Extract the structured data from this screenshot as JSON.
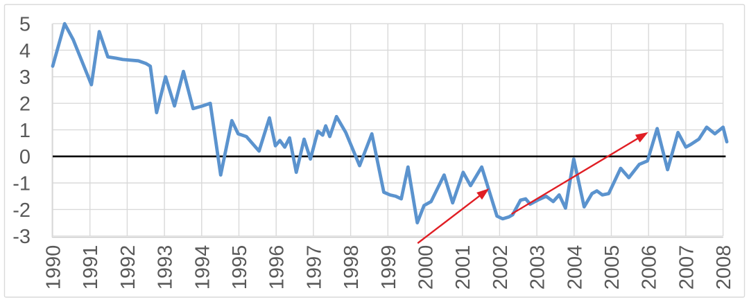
{
  "figure": {
    "background": "#ffffff",
    "border_color": "#d9d9d9"
  },
  "chart_data": {
    "type": "line",
    "title": "",
    "grid": true,
    "legend": false,
    "gridline_color": "#d9d9d9",
    "axis_line_color": "#c9c9c9",
    "tick_label_color": "#595959",
    "x_axis": {
      "tick_labels": [
        "1990",
        "1991",
        "1992",
        "1993",
        "1994",
        "1995",
        "1996",
        "1997",
        "1998",
        "1999",
        "2000",
        "2001",
        "2002",
        "2003",
        "2004",
        "2005",
        "2006",
        "2007",
        "2008"
      ],
      "range": [
        1990,
        2008.6
      ],
      "label_rotation_deg": -90
    },
    "y_axis": {
      "tick_labels": [
        "5",
        "4",
        "3",
        "2",
        "1",
        "0",
        "-1",
        "-2",
        "-3"
      ],
      "tick_values": [
        5,
        4,
        3,
        2,
        1,
        0,
        -1,
        -2,
        -3
      ],
      "range": [
        -3,
        5
      ]
    },
    "series": [
      {
        "name": "value-line",
        "color": "#5b93ce",
        "points": [
          [
            1990.0,
            3.4
          ],
          [
            1990.32,
            5.0
          ],
          [
            1990.55,
            4.4
          ],
          [
            1991.04,
            2.7
          ],
          [
            1991.25,
            4.7
          ],
          [
            1991.48,
            3.75
          ],
          [
            1991.7,
            3.7
          ],
          [
            1991.88,
            3.65
          ],
          [
            1992.3,
            3.6
          ],
          [
            1992.5,
            3.5
          ],
          [
            1992.62,
            3.4
          ],
          [
            1992.79,
            1.65
          ],
          [
            1993.03,
            3.0
          ],
          [
            1993.27,
            1.9
          ],
          [
            1993.51,
            3.2
          ],
          [
            1993.77,
            1.8
          ],
          [
            1994.02,
            1.9
          ],
          [
            1994.23,
            2.0
          ],
          [
            1994.51,
            -0.7
          ],
          [
            1994.81,
            1.35
          ],
          [
            1994.98,
            0.85
          ],
          [
            1995.2,
            0.75
          ],
          [
            1995.54,
            0.2
          ],
          [
            1995.82,
            1.45
          ],
          [
            1995.98,
            0.4
          ],
          [
            1996.1,
            0.6
          ],
          [
            1996.23,
            0.35
          ],
          [
            1996.36,
            0.7
          ],
          [
            1996.54,
            -0.6
          ],
          [
            1996.75,
            0.65
          ],
          [
            1996.92,
            -0.1
          ],
          [
            1997.12,
            0.95
          ],
          [
            1997.25,
            0.8
          ],
          [
            1997.33,
            1.15
          ],
          [
            1997.44,
            0.75
          ],
          [
            1997.62,
            1.5
          ],
          [
            1997.87,
            0.9
          ],
          [
            1998.24,
            -0.35
          ],
          [
            1998.57,
            0.85
          ],
          [
            1998.89,
            -1.35
          ],
          [
            1999.06,
            -1.45
          ],
          [
            1999.21,
            -1.5
          ],
          [
            1999.36,
            -1.6
          ],
          [
            1999.54,
            -0.4
          ],
          [
            1999.79,
            -2.5
          ],
          [
            1999.97,
            -1.85
          ],
          [
            2000.16,
            -1.7
          ],
          [
            2000.51,
            -0.7
          ],
          [
            2000.74,
            -1.75
          ],
          [
            2001.02,
            -0.6
          ],
          [
            2001.22,
            -1.1
          ],
          [
            2001.52,
            -0.4
          ],
          [
            2001.93,
            -2.25
          ],
          [
            2002.08,
            -2.35
          ],
          [
            2002.25,
            -2.28
          ],
          [
            2002.35,
            -2.2
          ],
          [
            2002.56,
            -1.65
          ],
          [
            2002.7,
            -1.6
          ],
          [
            2002.82,
            -1.8
          ],
          [
            2003.02,
            -1.65
          ],
          [
            2003.25,
            -1.5
          ],
          [
            2003.44,
            -1.7
          ],
          [
            2003.6,
            -1.45
          ],
          [
            2003.77,
            -1.95
          ],
          [
            2003.99,
            -0.1
          ],
          [
            2004.27,
            -1.9
          ],
          [
            2004.48,
            -1.4
          ],
          [
            2004.61,
            -1.3
          ],
          [
            2004.76,
            -1.45
          ],
          [
            2004.93,
            -1.4
          ],
          [
            2005.25,
            -0.45
          ],
          [
            2005.47,
            -0.8
          ],
          [
            2005.75,
            -0.3
          ],
          [
            2005.97,
            -0.17
          ],
          [
            2006.23,
            1.05
          ],
          [
            2006.51,
            -0.5
          ],
          [
            2006.79,
            0.9
          ],
          [
            2007.0,
            0.35
          ],
          [
            2007.13,
            0.45
          ],
          [
            2007.35,
            0.65
          ],
          [
            2007.56,
            1.1
          ],
          [
            2007.78,
            0.85
          ],
          [
            2008.0,
            1.1
          ],
          [
            2008.1,
            0.55
          ]
        ]
      }
    ],
    "zero_line": {
      "value": 0,
      "color": "#000000",
      "x_start": 1990,
      "x_end": 2008.07
    },
    "annotations": [
      {
        "type": "arrow",
        "name": "trend-arrow-1",
        "color": "#e01e24",
        "from": [
          1999.8,
          -3.27
        ],
        "to": [
          2001.72,
          -1.21
        ]
      },
      {
        "type": "arrow",
        "name": "trend-arrow-2",
        "color": "#e01e24",
        "from": [
          2002.32,
          -2.17
        ],
        "to": [
          2005.99,
          0.91
        ]
      }
    ]
  }
}
